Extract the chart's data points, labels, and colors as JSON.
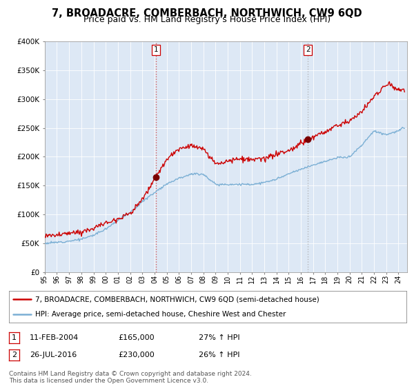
{
  "title": "7, BROADACRE, COMBERBACH, NORTHWICH, CW9 6QD",
  "subtitle": "Price paid vs. HM Land Registry's House Price Index (HPI)",
  "ylim": [
    0,
    400000
  ],
  "yticks": [
    0,
    50000,
    100000,
    150000,
    200000,
    250000,
    300000,
    350000,
    400000
  ],
  "ytick_labels": [
    "£0",
    "£50K",
    "£100K",
    "£150K",
    "£200K",
    "£250K",
    "£300K",
    "£350K",
    "£400K"
  ],
  "red_line_color": "#cc0000",
  "blue_line_color": "#7bafd4",
  "sale1_date": 2004.1,
  "sale1_price": 165000,
  "sale2_date": 2016.57,
  "sale2_price": 230000,
  "background_color": "#ffffff",
  "plot_bg_color": "#dde8f5",
  "grid_color": "#ffffff",
  "legend_line1": "7, BROADACRE, COMBERBACH, NORTHWICH, CW9 6QD (semi-detached house)",
  "legend_line2": "HPI: Average price, semi-detached house, Cheshire West and Chester",
  "table_row1": [
    "1",
    "11-FEB-2004",
    "£165,000",
    "27% ↑ HPI"
  ],
  "table_row2": [
    "2",
    "26-JUL-2016",
    "£230,000",
    "26% ↑ HPI"
  ],
  "footnote": "Contains HM Land Registry data © Crown copyright and database right 2024.\nThis data is licensed under the Open Government Licence v3.0.",
  "title_fontsize": 10.5,
  "subtitle_fontsize": 9
}
